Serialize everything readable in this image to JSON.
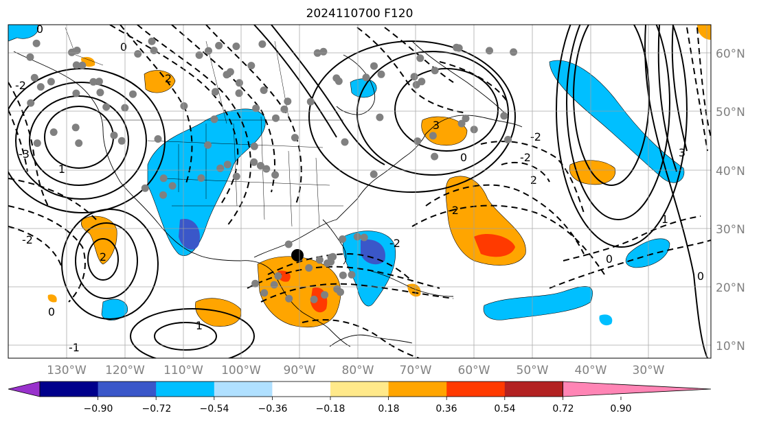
{
  "title": "2024110700 F120",
  "map": {
    "projection": "PlateCarree",
    "lon_range": [
      -140,
      -19
    ],
    "lat_range": [
      8,
      65
    ],
    "ocean_color": "#ffffff",
    "gridlines": true
  },
  "lon_ticks": [
    "130°W",
    "120°W",
    "110°W",
    "100°W",
    "90°W",
    "80°W",
    "70°W",
    "60°W",
    "50°W",
    "40°W",
    "30°W"
  ],
  "lat_ticks": [
    "10°N",
    "20°N",
    "30°N",
    "40°N",
    "50°N",
    "60°N"
  ],
  "colorbar": {
    "ticks": [
      "−0.90",
      "−0.72",
      "−0.54",
      "−0.36",
      "−0.18",
      "0.18",
      "0.36",
      "0.54",
      "0.72",
      "0.90"
    ],
    "colors": [
      "#9932cc",
      "#00008b",
      "#3a57c9",
      "#00bfff",
      "#b0e0ff",
      "#ffffff",
      "#ffe98a",
      "#ffa500",
      "#ff3a00",
      "#b22222",
      "#ff85b5"
    ],
    "extend": "both"
  },
  "contour_labels": [
    "0",
    "0",
    "2",
    "-2",
    "-2",
    "1",
    "0",
    "-1",
    "1",
    "2",
    "3",
    "-3",
    "-2",
    "0",
    "-2",
    "2",
    "-2",
    "1",
    "3",
    "0",
    "0",
    "-2"
  ],
  "marker": {
    "lon": -90,
    "lat": 26,
    "label": ""
  },
  "station_dots_count": 110
}
